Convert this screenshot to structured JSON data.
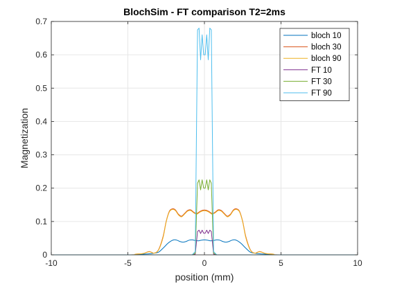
{
  "chart_data": {
    "type": "line",
    "title": "BlochSim - FT comparison T2=2ms",
    "xlabel": "position (mm)",
    "ylabel": "Magnetization",
    "xlim": [
      -10,
      10
    ],
    "ylim": [
      0,
      0.7
    ],
    "xticks": [
      -10,
      -5,
      0,
      5,
      10
    ],
    "yticks": [
      0,
      0.1,
      0.2,
      0.3,
      0.4,
      0.5,
      0.6,
      0.7
    ],
    "xtick_labels": [
      "-10",
      "-5",
      "0",
      "5",
      "10"
    ],
    "ytick_labels": [
      "0",
      "0.1",
      "0.2",
      "0.3",
      "0.4",
      "0.5",
      "0.6",
      "0.7"
    ],
    "grid": true,
    "legend_position": "top-right",
    "series": [
      {
        "name": "bloch 10",
        "color": "#0072BD",
        "x": [
          -10,
          -5,
          -4.5,
          -4,
          -3.6,
          -3.3,
          -3,
          -2.7,
          -2.4,
          -2.2,
          -2,
          -1.8,
          -1.6,
          -1.4,
          -1.2,
          -1,
          -0.8,
          -0.6,
          -0.4,
          -0.2,
          0,
          0.2,
          0.4,
          0.6,
          0.8,
          1,
          1.2,
          1.4,
          1.6,
          1.8,
          2,
          2.2,
          2.4,
          2.7,
          3,
          3.3,
          3.6,
          4,
          4.5,
          5,
          10
        ],
        "y": [
          0,
          0,
          0.001,
          0.002,
          0.003,
          0.005,
          0.008,
          0.02,
          0.034,
          0.041,
          0.045,
          0.044,
          0.04,
          0.038,
          0.04,
          0.044,
          0.045,
          0.043,
          0.042,
          0.044,
          0.045,
          0.044,
          0.042,
          0.043,
          0.045,
          0.044,
          0.04,
          0.038,
          0.04,
          0.044,
          0.045,
          0.041,
          0.034,
          0.02,
          0.008,
          0.005,
          0.003,
          0.002,
          0.001,
          0,
          0
        ]
      },
      {
        "name": "bloch 30",
        "color": "#D95319",
        "x": [
          -10,
          -5,
          -4.5,
          -4,
          -3.6,
          -3.3,
          -3,
          -2.7,
          -2.5,
          -2.3,
          -2.1,
          -1.9,
          -1.7,
          -1.5,
          -1.3,
          -1.1,
          -0.9,
          -0.7,
          -0.5,
          -0.3,
          -0.1,
          0.1,
          0.3,
          0.5,
          0.7,
          0.9,
          1.1,
          1.3,
          1.5,
          1.7,
          1.9,
          2.1,
          2.3,
          2.5,
          2.7,
          3,
          3.3,
          3.6,
          4,
          4.5,
          5,
          10
        ],
        "y": [
          0,
          0,
          0.002,
          0.004,
          0.01,
          0.005,
          0.015,
          0.055,
          0.1,
          0.13,
          0.138,
          0.135,
          0.122,
          0.116,
          0.124,
          0.133,
          0.135,
          0.128,
          0.124,
          0.13,
          0.134,
          0.134,
          0.13,
          0.124,
          0.128,
          0.135,
          0.133,
          0.124,
          0.116,
          0.122,
          0.135,
          0.138,
          0.13,
          0.1,
          0.055,
          0.015,
          0.005,
          0.01,
          0.004,
          0.002,
          0,
          0
        ]
      },
      {
        "name": "bloch 90",
        "color": "#EDB120",
        "x": [
          -10,
          -5,
          -4.5,
          -4,
          -3.6,
          -3.3,
          -3,
          -2.7,
          -2.5,
          -2.3,
          -2.1,
          -1.9,
          -1.7,
          -1.5,
          -1.3,
          -1.1,
          -0.9,
          -0.7,
          -0.5,
          -0.3,
          -0.1,
          0.1,
          0.3,
          0.5,
          0.7,
          0.9,
          1.1,
          1.3,
          1.5,
          1.7,
          1.9,
          2.1,
          2.3,
          2.5,
          2.7,
          3,
          3.3,
          3.6,
          4,
          4.5,
          5,
          10
        ],
        "y": [
          0,
          0,
          0.002,
          0.004,
          0.009,
          0.005,
          0.014,
          0.052,
          0.098,
          0.128,
          0.136,
          0.133,
          0.12,
          0.114,
          0.122,
          0.131,
          0.133,
          0.126,
          0.122,
          0.128,
          0.132,
          0.132,
          0.128,
          0.122,
          0.126,
          0.133,
          0.131,
          0.122,
          0.114,
          0.12,
          0.133,
          0.136,
          0.128,
          0.098,
          0.052,
          0.014,
          0.005,
          0.009,
          0.004,
          0.002,
          0,
          0
        ]
      },
      {
        "name": "FT 10",
        "color": "#7E2F8E",
        "x": [
          -10,
          -0.8,
          -0.6,
          -0.45,
          -0.35,
          -0.25,
          -0.15,
          -0.05,
          0.05,
          0.15,
          0.25,
          0.35,
          0.45,
          0.6,
          0.8,
          10
        ],
        "y": [
          0,
          0,
          0.002,
          0.07,
          0.074,
          0.064,
          0.074,
          0.065,
          0.065,
          0.074,
          0.064,
          0.074,
          0.07,
          0.002,
          0,
          0
        ]
      },
      {
        "name": "FT 30",
        "color": "#77AC30",
        "x": [
          -10,
          -0.8,
          -0.6,
          -0.45,
          -0.35,
          -0.25,
          -0.15,
          -0.05,
          0.05,
          0.15,
          0.25,
          0.35,
          0.45,
          0.6,
          0.8,
          10
        ],
        "y": [
          0,
          0,
          0.005,
          0.215,
          0.225,
          0.195,
          0.225,
          0.2,
          0.2,
          0.225,
          0.195,
          0.225,
          0.215,
          0.005,
          0,
          0
        ]
      },
      {
        "name": "FT 90",
        "color": "#4DBEEE",
        "x": [
          -10,
          -0.8,
          -0.6,
          -0.45,
          -0.35,
          -0.25,
          -0.15,
          -0.05,
          0.05,
          0.15,
          0.25,
          0.35,
          0.45,
          0.6,
          0.8,
          10
        ],
        "y": [
          0,
          0,
          0.01,
          0.675,
          0.68,
          0.585,
          0.66,
          0.6,
          0.6,
          0.66,
          0.585,
          0.68,
          0.675,
          0.01,
          0,
          0
        ]
      }
    ]
  }
}
